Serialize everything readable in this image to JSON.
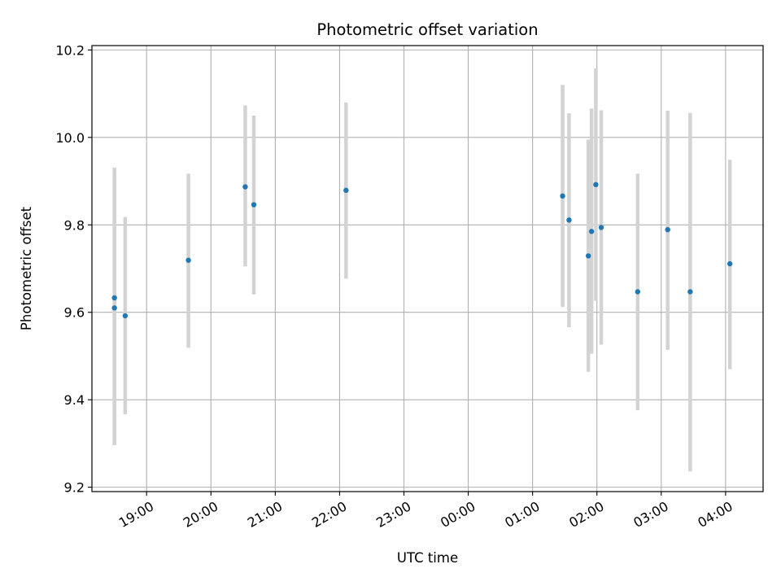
{
  "chart_data": {
    "type": "scatter",
    "title": "Photometric offset variation",
    "xlabel": "UTC time",
    "ylabel": "Photometric offset",
    "x_axis": {
      "kind": "time",
      "xlim": [
        "18:09",
        "04:35"
      ],
      "ticks": [
        "19:00",
        "20:00",
        "21:00",
        "22:00",
        "23:00",
        "00:00",
        "01:00",
        "02:00",
        "03:00",
        "04:00"
      ]
    },
    "y_axis": {
      "ylim": [
        9.19,
        10.21
      ],
      "ticks": [
        "9.2",
        "9.4",
        "9.6",
        "9.8",
        "10.0",
        "10.2"
      ]
    },
    "grid": true,
    "points": [
      {
        "x": "18:30",
        "y": 9.633,
        "err_low": 9.296,
        "err_high": 9.931
      },
      {
        "x": "18:30",
        "y": 9.61,
        "err_low": 9.296,
        "err_high": 9.925
      },
      {
        "x": "18:40",
        "y": 9.592,
        "err_low": 9.367,
        "err_high": 9.818
      },
      {
        "x": "19:39",
        "y": 9.719,
        "err_low": 9.519,
        "err_high": 9.917
      },
      {
        "x": "20:32",
        "y": 9.887,
        "err_low": 9.705,
        "err_high": 10.073
      },
      {
        "x": "20:40",
        "y": 9.846,
        "err_low": 9.641,
        "err_high": 10.05
      },
      {
        "x": "22:06",
        "y": 9.879,
        "err_low": 9.677,
        "err_high": 10.08
      },
      {
        "x": "01:28",
        "y": 9.866,
        "err_low": 9.612,
        "err_high": 10.12
      },
      {
        "x": "01:34",
        "y": 9.811,
        "err_low": 9.566,
        "err_high": 10.055
      },
      {
        "x": "01:52",
        "y": 9.729,
        "err_low": 9.464,
        "err_high": 9.995
      },
      {
        "x": "01:55",
        "y": 9.785,
        "err_low": 9.505,
        "err_high": 10.066
      },
      {
        "x": "01:59",
        "y": 9.892,
        "err_low": 9.626,
        "err_high": 10.158
      },
      {
        "x": "02:04",
        "y": 9.794,
        "err_low": 9.526,
        "err_high": 10.062
      },
      {
        "x": "02:38",
        "y": 9.647,
        "err_low": 9.376,
        "err_high": 9.917
      },
      {
        "x": "03:06",
        "y": 9.789,
        "err_low": 9.514,
        "err_high": 10.061
      },
      {
        "x": "03:27",
        "y": 9.647,
        "err_low": 9.236,
        "err_high": 10.056
      },
      {
        "x": "04:04",
        "y": 9.711,
        "err_low": 9.47,
        "err_high": 9.949
      }
    ],
    "colors": {
      "marker": "#1f77b4",
      "errorbar": "#d3d3d3",
      "grid": "#b0b0b0",
      "axes": "#000000"
    }
  }
}
